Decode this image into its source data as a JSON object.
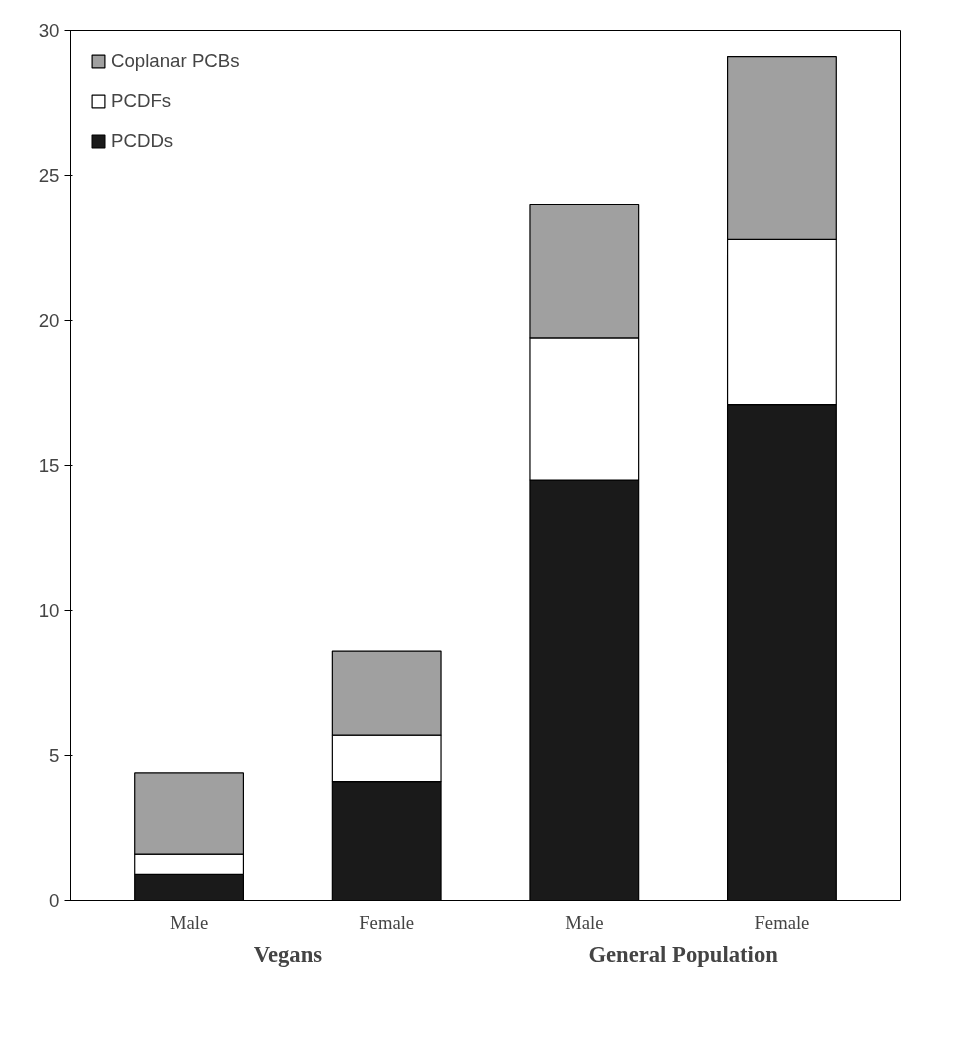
{
  "chart_data": {
    "type": "bar",
    "stacked": true,
    "categories": [
      "Male",
      "Female",
      "Male",
      "Female"
    ],
    "series": [
      {
        "name": "PCDDs",
        "color": "#1a1a1a",
        "values": [
          0.9,
          4.1,
          14.5,
          17.1
        ]
      },
      {
        "name": "PCDFs",
        "color": "#ffffff",
        "values": [
          0.7,
          1.6,
          4.9,
          5.7
        ]
      },
      {
        "name": "Coplanar PCBs",
        "color": "#a0a0a0",
        "values": [
          2.8,
          2.9,
          4.6,
          6.3
        ]
      }
    ],
    "ylim": [
      0,
      30
    ],
    "yticks": [
      0,
      5,
      10,
      15,
      20,
      25,
      30
    ],
    "grid": false,
    "legend": "top left",
    "annotations": [
      "Vegans",
      "General Population"
    ]
  }
}
